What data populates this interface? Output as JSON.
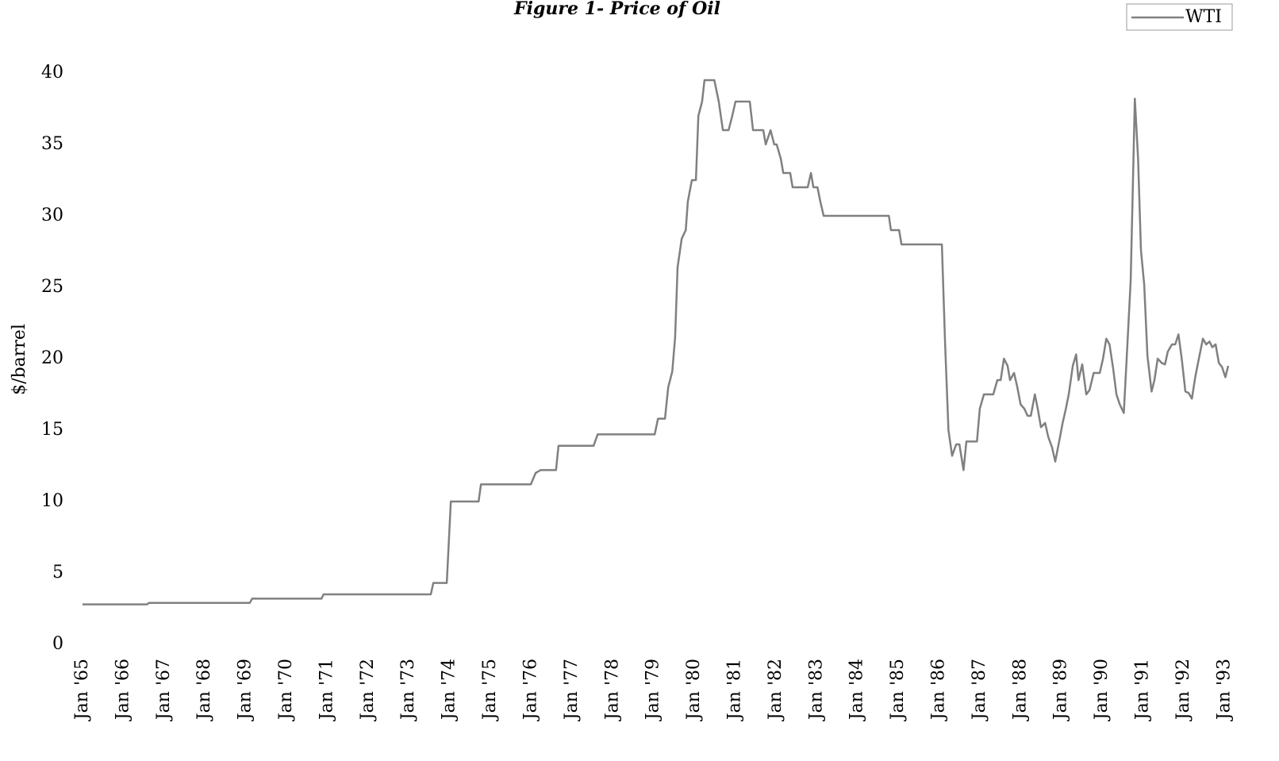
{
  "chart_data": {
    "type": "line",
    "title": "Figure 1- Price of Oil",
    "ylabel": "$/barrel",
    "x": [
      1965,
      1966.58,
      1966.63,
      1969.1,
      1969.16,
      1970.86,
      1970.91,
      1973.54,
      1973.6,
      1973.93,
      1974.03,
      1974.71,
      1974.77,
      1975.99,
      1976.11,
      1976.23,
      1976.61,
      1976.67,
      1977.53,
      1977.63,
      1979.03,
      1979.11,
      1979.28,
      1979.36,
      1979.46,
      1979.53,
      1979.59,
      1979.69,
      1979.79,
      1979.84,
      1979.94,
      1980.04,
      1980.1,
      1980.19,
      1980.25,
      1980.49,
      1980.6,
      1980.7,
      1980.84,
      1980.93,
      1981.01,
      1981.36,
      1981.44,
      1981.69,
      1981.75,
      1981.87,
      1981.96,
      1982.02,
      1982.12,
      1982.18,
      1982.35,
      1982.41,
      1982.78,
      1982.86,
      1982.92,
      1983.02,
      1983.09,
      1983.17,
      1984.77,
      1984.82,
      1985.02,
      1985.08,
      1986.07,
      1986.15,
      1986.23,
      1986.32,
      1986.42,
      1986.5,
      1986.6,
      1986.67,
      1986.93,
      1987.0,
      1987.1,
      1987.33,
      1987.43,
      1987.51,
      1987.59,
      1987.68,
      1987.74,
      1987.84,
      1987.92,
      1988.0,
      1988.09,
      1988.17,
      1988.25,
      1988.35,
      1988.42,
      1988.5,
      1988.6,
      1988.68,
      1988.77,
      1988.85,
      1988.93,
      1989.03,
      1989.11,
      1989.18,
      1989.28,
      1989.36,
      1989.42,
      1989.51,
      1989.61,
      1989.69,
      1989.79,
      1989.94,
      1990.02,
      1990.1,
      1990.18,
      1990.27,
      1990.35,
      1990.43,
      1990.53,
      1990.6,
      1990.7,
      1990.8,
      1990.88,
      1990.95,
      1991.03,
      1991.11,
      1991.21,
      1991.28,
      1991.36,
      1991.46,
      1991.54,
      1991.61,
      1991.71,
      1991.79,
      1991.87,
      1991.95,
      1992.04,
      1992.12,
      1992.2,
      1992.28,
      1992.37,
      1992.47,
      1992.55,
      1992.63,
      1992.7,
      1992.78,
      1992.86,
      1992.94,
      1993.02,
      1993.09
    ],
    "series": [
      {
        "name": "WTI",
        "color": "#808080",
        "values": [
          2.8,
          2.8,
          2.9,
          2.9,
          3.2,
          3.2,
          3.5,
          3.5,
          4.3,
          4.3,
          10.0,
          10.0,
          11.2,
          11.2,
          12.0,
          12.2,
          12.2,
          13.9,
          13.9,
          14.7,
          14.7,
          15.8,
          15.8,
          18.0,
          19.1,
          21.5,
          26.4,
          28.4,
          29.0,
          31.0,
          32.5,
          32.5,
          37.0,
          38.0,
          39.5,
          39.5,
          38.0,
          36.0,
          36.0,
          37.0,
          38.0,
          38.0,
          36.0,
          36.0,
          35.0,
          36.0,
          35.0,
          35.0,
          34.0,
          33.0,
          33.0,
          32.0,
          32.0,
          33.0,
          32.0,
          32.0,
          31.0,
          30.0,
          30.0,
          29.0,
          29.0,
          28.0,
          28.0,
          21.0,
          15.0,
          13.2,
          14.0,
          14.0,
          12.2,
          14.2,
          14.2,
          16.5,
          17.5,
          17.5,
          18.5,
          18.5,
          20.0,
          19.5,
          18.5,
          19.0,
          18.0,
          16.8,
          16.5,
          16.0,
          16.0,
          17.5,
          16.5,
          15.2,
          15.5,
          14.5,
          13.8,
          12.8,
          14.0,
          15.5,
          16.5,
          17.5,
          19.5,
          20.3,
          18.5,
          19.6,
          17.5,
          17.8,
          19.0,
          19.0,
          20.0,
          21.4,
          21.0,
          19.3,
          17.5,
          16.8,
          16.2,
          20.0,
          25.5,
          38.2,
          34.0,
          27.6,
          25.2,
          20.2,
          17.7,
          18.5,
          20.0,
          19.7,
          19.6,
          20.5,
          21.0,
          21.0,
          21.7,
          20.0,
          17.7,
          17.6,
          17.2,
          18.7,
          20.0,
          21.4,
          21.0,
          21.2,
          20.8,
          21.0,
          19.7,
          19.4,
          18.7,
          19.5
        ]
      }
    ],
    "xlim": [
      1965,
      1993.09
    ],
    "xticks": [
      {
        "value": 1965,
        "label": "Jan '65"
      },
      {
        "value": 1966,
        "label": "Jan '66"
      },
      {
        "value": 1967,
        "label": "Jan '67"
      },
      {
        "value": 1968,
        "label": "Jan '68"
      },
      {
        "value": 1969,
        "label": "Jan '69"
      },
      {
        "value": 1970,
        "label": "Jan '70"
      },
      {
        "value": 1971,
        "label": "Jan '71"
      },
      {
        "value": 1972,
        "label": "Jan '72"
      },
      {
        "value": 1973,
        "label": "Jan '73"
      },
      {
        "value": 1974,
        "label": "Jan '74"
      },
      {
        "value": 1975,
        "label": "Jan '75"
      },
      {
        "value": 1976,
        "label": "Jan '76"
      },
      {
        "value": 1977,
        "label": "Jan '77"
      },
      {
        "value": 1978,
        "label": "Jan '78"
      },
      {
        "value": 1979,
        "label": "Jan '79"
      },
      {
        "value": 1980,
        "label": "Jan '80"
      },
      {
        "value": 1981,
        "label": "Jan '81"
      },
      {
        "value": 1982,
        "label": "Jan '82"
      },
      {
        "value": 1983,
        "label": "Jan '83"
      },
      {
        "value": 1984,
        "label": "Jan '84"
      },
      {
        "value": 1985,
        "label": "Jan '85"
      },
      {
        "value": 1986,
        "label": "Jan '86"
      },
      {
        "value": 1987,
        "label": "Jan '87"
      },
      {
        "value": 1988,
        "label": "Jan '88"
      },
      {
        "value": 1989,
        "label": "Jan '89"
      },
      {
        "value": 1990,
        "label": "Jan '90"
      },
      {
        "value": 1991,
        "label": "Jan '91"
      },
      {
        "value": 1992,
        "label": "Jan '92"
      },
      {
        "value": 1993,
        "label": "Jan '93"
      }
    ],
    "ylim": [
      0,
      40
    ],
    "yticks": [
      0,
      5,
      10,
      15,
      20,
      25,
      30,
      35,
      40
    ],
    "grid": false,
    "legend": "upper right"
  }
}
